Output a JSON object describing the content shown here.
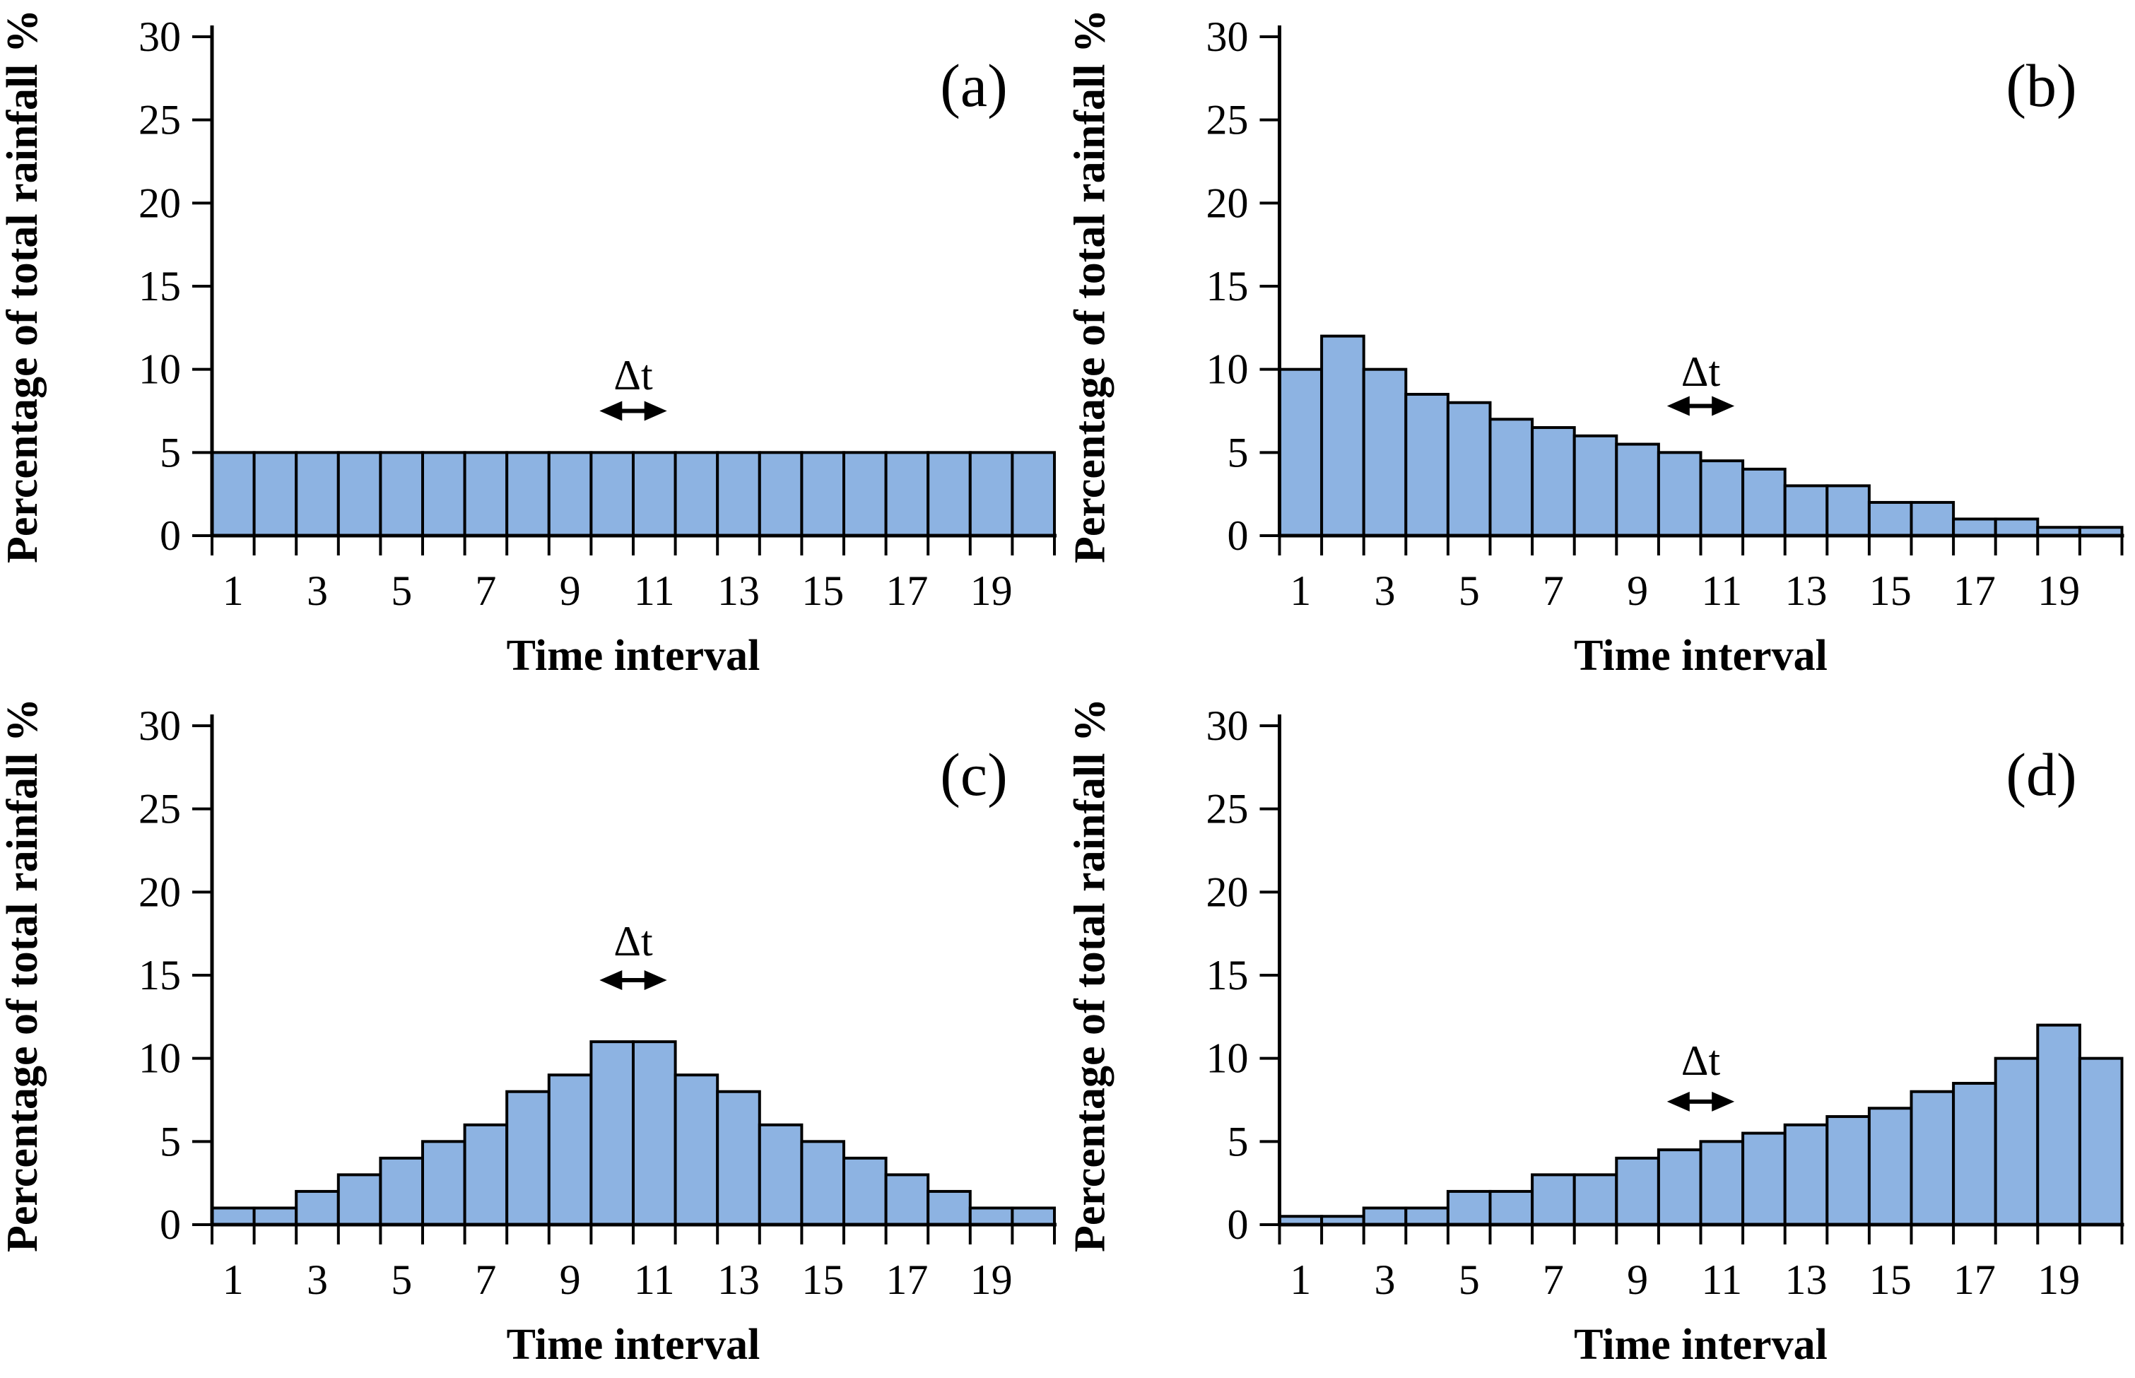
{
  "figure": {
    "background": "#ffffff",
    "bar_fill": "#8DB3E2",
    "bar_stroke": "#000000",
    "axis_color": "#000000"
  },
  "chart_data": [
    {
      "type": "bar",
      "panel_label": "(a)",
      "xlabel": "Time interval",
      "ylabel": "Percentage of total rainfall %",
      "x": [
        1,
        2,
        3,
        4,
        5,
        6,
        7,
        8,
        9,
        10,
        11,
        12,
        13,
        14,
        15,
        16,
        17,
        18,
        19,
        20
      ],
      "values": [
        5,
        5,
        5,
        5,
        5,
        5,
        5,
        5,
        5,
        5,
        5,
        5,
        5,
        5,
        5,
        5,
        5,
        5,
        5,
        5
      ],
      "ylim": [
        0,
        30
      ],
      "yticks": [
        0,
        5,
        10,
        15,
        20,
        25,
        30
      ],
      "xtick_labels": [
        1,
        3,
        5,
        7,
        9,
        11,
        13,
        15,
        17,
        19
      ],
      "grid": false,
      "legend": "none",
      "annotation": {
        "text": "Δt",
        "center_x": 10,
        "half_width": 0.8,
        "label_y": 8.8,
        "arrow_y": 7.5
      }
    },
    {
      "type": "bar",
      "panel_label": "(b)",
      "xlabel": "Time interval",
      "ylabel": "Percentage of total rainfall %",
      "x": [
        1,
        2,
        3,
        4,
        5,
        6,
        7,
        8,
        9,
        10,
        11,
        12,
        13,
        14,
        15,
        16,
        17,
        18,
        19,
        20
      ],
      "values": [
        10,
        12,
        10,
        8.5,
        8,
        7,
        6.5,
        6,
        5.5,
        5,
        4.5,
        4,
        3,
        3,
        2,
        2,
        1,
        1,
        0.5,
        0.5
      ],
      "ylim": [
        0,
        30
      ],
      "yticks": [
        0,
        5,
        10,
        15,
        20,
        25,
        30
      ],
      "xtick_labels": [
        1,
        3,
        5,
        7,
        9,
        11,
        13,
        15,
        17,
        19
      ],
      "grid": false,
      "legend": "none",
      "annotation": {
        "text": "Δt",
        "center_x": 10,
        "half_width": 0.8,
        "label_y": 9.0,
        "arrow_y": 7.8
      }
    },
    {
      "type": "bar",
      "panel_label": "(c)",
      "xlabel": "Time interval",
      "ylabel": "Percentage of total rainfall %",
      "x": [
        1,
        2,
        3,
        4,
        5,
        6,
        7,
        8,
        9,
        10,
        11,
        12,
        13,
        14,
        15,
        16,
        17,
        18,
        19,
        20
      ],
      "values": [
        1,
        1,
        2,
        3,
        4,
        5,
        6,
        8,
        9,
        11,
        11,
        9,
        8,
        6,
        5,
        4,
        3,
        2,
        1,
        1
      ],
      "ylim": [
        0,
        30
      ],
      "yticks": [
        0,
        5,
        10,
        15,
        20,
        25,
        30
      ],
      "xtick_labels": [
        1,
        3,
        5,
        7,
        9,
        11,
        13,
        15,
        17,
        19
      ],
      "grid": false,
      "legend": "none",
      "annotation": {
        "text": "Δt",
        "center_x": 10,
        "half_width": 0.8,
        "label_y": 16.2,
        "arrow_y": 14.7
      }
    },
    {
      "type": "bar",
      "panel_label": "(d)",
      "xlabel": "Time interval",
      "ylabel": "Percentage of total rainfall %",
      "x": [
        1,
        2,
        3,
        4,
        5,
        6,
        7,
        8,
        9,
        10,
        11,
        12,
        13,
        14,
        15,
        16,
        17,
        18,
        19,
        20
      ],
      "values": [
        0.5,
        0.5,
        1,
        1,
        2,
        2,
        3,
        3,
        4,
        4.5,
        5,
        5.5,
        6,
        6.5,
        7,
        8,
        8.5,
        10,
        12,
        10
      ],
      "ylim": [
        0,
        30
      ],
      "yticks": [
        0,
        5,
        10,
        15,
        20,
        25,
        30
      ],
      "xtick_labels": [
        1,
        3,
        5,
        7,
        9,
        11,
        13,
        15,
        17,
        19
      ],
      "grid": false,
      "legend": "none",
      "annotation": {
        "text": "Δt",
        "center_x": 10,
        "half_width": 0.8,
        "label_y": 9.0,
        "arrow_y": 7.4
      }
    }
  ]
}
